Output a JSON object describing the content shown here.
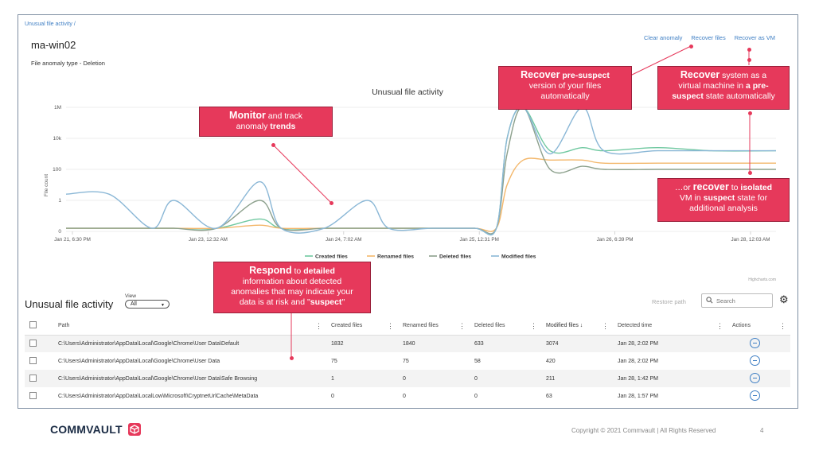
{
  "breadcrumb": "Unusual file activity /",
  "page": {
    "title": "ma-win02",
    "subtitle": "File anomaly type - Deletion"
  },
  "top_actions": {
    "clear": "Clear anomaly",
    "recover_files": "Recover files",
    "recover_vm": "Recover as VM"
  },
  "chart_data": {
    "type": "line",
    "title": "Unusual file activity",
    "ylabel": "File count",
    "yscale": "log",
    "yticks": [
      "0",
      "1",
      "100",
      "10k",
      "1M"
    ],
    "xticks": [
      "Jan 21, 6:30 PM",
      "Jan 23, 12:32 AM",
      "Jan 24, 7:02 AM",
      "Jan 25, 12:31 PM",
      "Jan 26, 6:39 PM",
      "Jan 28, 12:03 AM"
    ],
    "x": [
      0,
      0.4,
      0.8,
      1.0,
      1.4,
      1.8,
      2.0,
      2.4,
      2.8,
      3.0,
      3.4,
      3.8,
      4.0,
      4.1,
      4.25,
      4.5,
      4.8,
      5.0,
      5.5,
      6.0,
      6.6
    ],
    "series": [
      {
        "name": "Created files",
        "color": "#6fc8a0",
        "values": [
          0.1,
          0.1,
          0.1,
          0.1,
          0.1,
          0.4,
          0.1,
          0.1,
          0.1,
          0.1,
          0.1,
          0.1,
          0.1,
          3.0,
          5.5,
          2.6,
          2.7,
          2.6,
          2.7,
          2.6,
          2.6
        ]
      },
      {
        "name": "Renamed files",
        "color": "#f3b76b",
        "values": [
          0.1,
          0.1,
          0.1,
          0.1,
          0.1,
          0.2,
          0.1,
          0.1,
          0.1,
          0.1,
          0.1,
          0.1,
          0.1,
          1.5,
          2.3,
          2.3,
          2.3,
          2.2,
          2.2,
          2.2,
          2.2
        ]
      },
      {
        "name": "Deleted files",
        "color": "#8ca08c",
        "values": [
          0.1,
          0.1,
          0.1,
          0.1,
          0.1,
          1.0,
          0.1,
          0.1,
          0.1,
          0.1,
          0.1,
          0.1,
          0.1,
          2.5,
          4.7,
          2.0,
          2.1,
          2.0,
          2.0,
          2.0,
          2.0
        ]
      },
      {
        "name": "Modified files",
        "color": "#8ab7d6",
        "values": [
          1.2,
          1.2,
          0.1,
          1.0,
          0.1,
          1.6,
          0.1,
          0.1,
          1.0,
          0.1,
          0.1,
          0.1,
          0.1,
          3.0,
          5.3,
          2.5,
          5.0,
          2.6,
          2.6,
          2.6,
          2.6
        ]
      }
    ],
    "credits": "Highcharts.com",
    "legend_position": "bottom-center"
  },
  "callouts": {
    "monitor": {
      "b1": "Monitor",
      "t1": " and track",
      "t2": "anomaly ",
      "b2": "trends"
    },
    "recover_files": {
      "b1": "Recover",
      "t1": " pre-suspect",
      "t2": "version of your files",
      "t3": "automatically"
    },
    "recover_vm": {
      "b1": "Recover",
      "t1": " system as a",
      "t2": "virtual machine in ",
      "b2": "a pre-",
      "b3": "suspect",
      "t3": " state automatically"
    },
    "isolated": {
      "t1": "…or ",
      "b1": "recover",
      "t2": " to ",
      "b2": "isolated",
      "t3": "VM in ",
      "b3": "suspect",
      "t4": " state for",
      "t5": "additional analysis"
    },
    "respond": {
      "b1": "Respond",
      "t1": " to ",
      "b2": "detailed",
      "t2": "information about detected",
      "t3": "anomalies that may indicate your",
      "t4": "data is at risk and \"",
      "b3": "suspect",
      "t5": "\""
    }
  },
  "table_section": {
    "title": "Unusual file activity",
    "view_label": "View",
    "view_value": "All",
    "restore_path": "Restore path",
    "search_placeholder": "Search"
  },
  "table": {
    "columns": [
      "Path",
      "Created files",
      "Renamed files",
      "Deleted files",
      "Modified files ↓",
      "Detected time",
      "Actions"
    ],
    "rows": [
      {
        "path": "C:\\Users\\Administrator\\AppData\\Local\\Google\\Chrome\\User Data\\Default",
        "created": "1832",
        "renamed": "1840",
        "deleted": "633",
        "modified": "3074",
        "time": "Jan 28, 2:02 PM"
      },
      {
        "path": "C:\\Users\\Administrator\\AppData\\Local\\Google\\Chrome\\User Data",
        "created": "75",
        "renamed": "75",
        "deleted": "58",
        "modified": "420",
        "time": "Jan 28, 2:02 PM"
      },
      {
        "path": "C:\\Users\\Administrator\\AppData\\Local\\Google\\Chrome\\User Data\\Safe Browsing",
        "created": "1",
        "renamed": "0",
        "deleted": "0",
        "modified": "211",
        "time": "Jan 28, 1:42 PM"
      },
      {
        "path": "C:\\Users\\Administrator\\AppData\\LocalLow\\Microsoft\\CryptnetUrlCache\\MetaData",
        "created": "0",
        "renamed": "0",
        "deleted": "0",
        "modified": "63",
        "time": "Jan 28, 1:57 PM"
      }
    ]
  },
  "footer": {
    "brand": "COMMVAULT",
    "copyright": "Copyright © 2021 Commvault  |  All Rights Reserved",
    "page": "4"
  },
  "colors": {
    "accent": "#e6395b",
    "link": "#3f7fc4"
  }
}
